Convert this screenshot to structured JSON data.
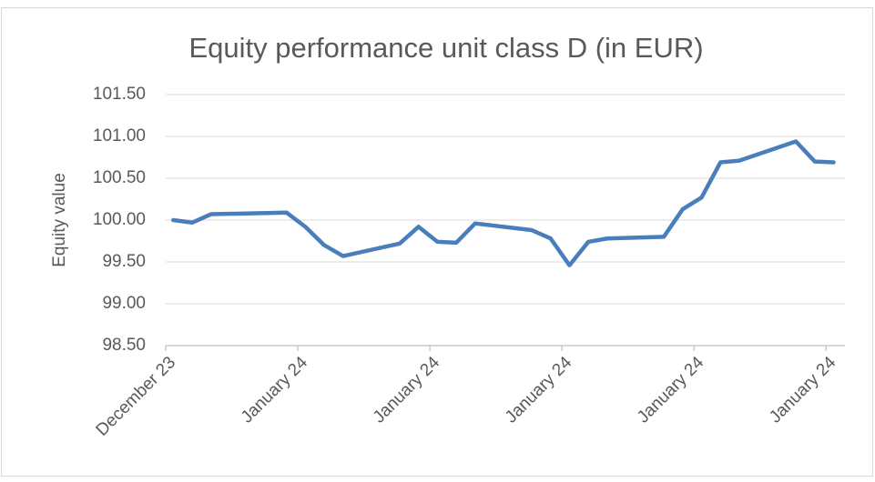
{
  "chart_data": {
    "type": "line",
    "title": "Equity performance unit class D (in EUR)",
    "ylabel": "Equity value",
    "x": [
      0.4,
      1.4,
      2.4,
      6.4,
      7.4,
      8.4,
      9.4,
      12.4,
      13.4,
      14.4,
      15.4,
      16.4,
      19.4,
      20.4,
      21.4,
      22.4,
      23.4,
      26.4,
      27.4,
      28.4,
      29.4,
      30.4,
      33.4,
      34.4,
      35.4
    ],
    "series": [
      {
        "color": "#4a7ebb",
        "values": [
          100.0,
          99.97,
          100.07,
          100.09,
          99.92,
          99.7,
          99.57,
          99.72,
          99.92,
          99.74,
          99.73,
          99.96,
          99.88,
          99.78,
          99.46,
          99.74,
          99.78,
          99.8,
          100.13,
          100.27,
          100.69,
          100.71,
          100.94,
          100.7,
          100.69
        ]
      }
    ],
    "xlim": [
      0,
      36
    ],
    "xticks": [
      {
        "value": 0,
        "label": "December 23"
      },
      {
        "value": 7,
        "label": "January 24"
      },
      {
        "value": 14,
        "label": "January 24"
      },
      {
        "value": 21,
        "label": "January 24"
      },
      {
        "value": 28,
        "label": "January 24"
      },
      {
        "value": 35,
        "label": "January 24"
      }
    ],
    "ylim": [
      98.5,
      101.5
    ],
    "yticks": [
      {
        "value": 98.5,
        "label": "98.50"
      },
      {
        "value": 99,
        "label": "99.00"
      },
      {
        "value": 99.5,
        "label": "99.50"
      },
      {
        "value": 100,
        "label": "100.00"
      },
      {
        "value": 100.5,
        "label": "100.50"
      },
      {
        "value": 101,
        "label": "101.00"
      },
      {
        "value": 101.5,
        "label": "101.50"
      }
    ],
    "grid": true
  }
}
